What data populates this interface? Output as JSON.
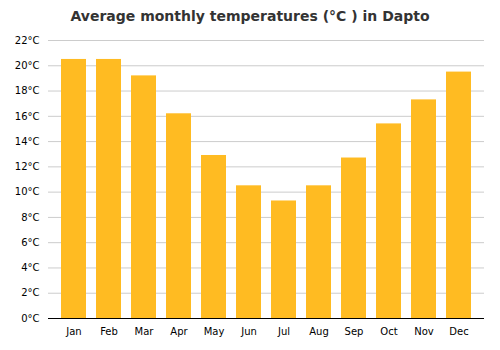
{
  "chart_data": {
    "type": "bar",
    "title": "Average monthly temperatures (°C ) in Dapto",
    "categories": [
      "Jan",
      "Feb",
      "Mar",
      "Apr",
      "May",
      "Jun",
      "Jul",
      "Aug",
      "Sep",
      "Oct",
      "Nov",
      "Dec"
    ],
    "values": [
      20.5,
      20.5,
      19.2,
      16.2,
      12.9,
      10.5,
      9.3,
      10.5,
      12.7,
      15.4,
      17.3,
      19.5
    ],
    "color": "#FFBB22",
    "ylim": [
      0,
      22
    ],
    "yticks": [
      {
        "value": 0,
        "label": "0°C"
      },
      {
        "value": 2,
        "label": "2°C"
      },
      {
        "value": 4,
        "label": "4°C"
      },
      {
        "value": 6,
        "label": "6°C"
      },
      {
        "value": 8,
        "label": "8°C"
      },
      {
        "value": 10,
        "label": "10°C"
      },
      {
        "value": 12,
        "label": "12°C"
      },
      {
        "value": 14,
        "label": "14°C"
      },
      {
        "value": 16,
        "label": "16°C"
      },
      {
        "value": 18,
        "label": "18°C"
      },
      {
        "value": 20,
        "label": "20°C"
      },
      {
        "value": 22,
        "label": "22°C"
      }
    ],
    "grid": true
  }
}
